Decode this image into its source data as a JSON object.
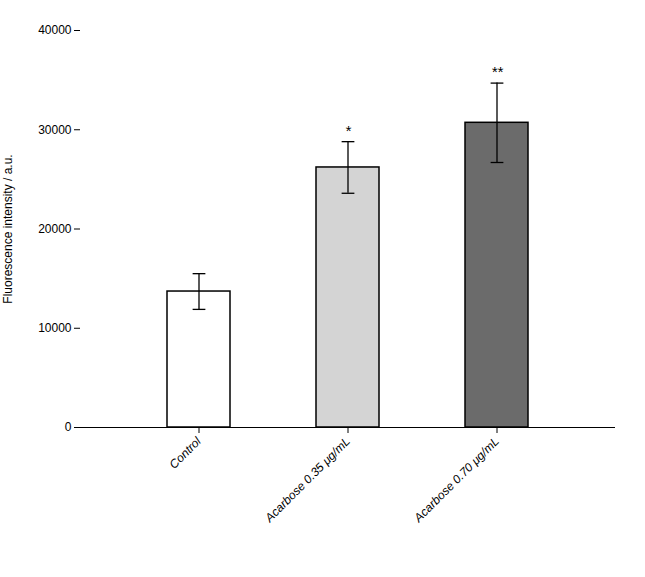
{
  "chart_data": {
    "type": "bar",
    "categories": [
      "Control",
      "Acarbose 0.35 μg/mL",
      "Acarbose 0.70 μg/mL"
    ],
    "values": [
      13700,
      26200,
      30700
    ],
    "errors": [
      1800,
      2600,
      4000
    ],
    "colors": [
      "#ffffff",
      "#d4d4d4",
      "#6b6b6b"
    ],
    "ylabel": "Fluorescence intensity / a.u.",
    "ylim": [
      0,
      40000
    ],
    "yticks": [
      0,
      10000,
      20000,
      30000,
      40000
    ],
    "significance": [
      null,
      "*",
      "**"
    ]
  }
}
